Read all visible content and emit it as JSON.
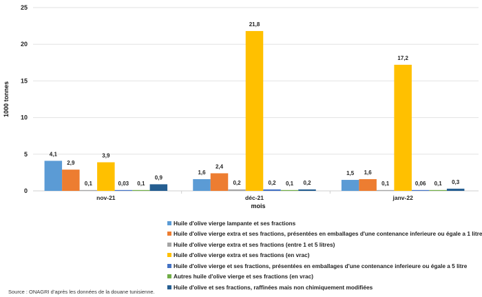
{
  "chart_data": {
    "type": "bar",
    "title": "",
    "xlabel": "mois",
    "ylabel": "1000 tonnes",
    "ylim": [
      0,
      25
    ],
    "yticks": [
      0,
      5,
      10,
      15,
      20,
      25
    ],
    "grid": true,
    "legend_position": "bottom",
    "categories": [
      "nov-21",
      "déc-21",
      "janv-22"
    ],
    "series": [
      {
        "name": "Huile d'olive vierge lampante et ses fractions",
        "color": "#5B9BD5",
        "values": [
          4.1,
          1.6,
          1.5
        ],
        "labels": [
          "4,1",
          "1,6",
          "1,5"
        ]
      },
      {
        "name": "Huile d'olive vierge extra et ses fractions, présentées en emballages d'une contenance inferieure ou égale a 1 litre",
        "color": "#ED7D31",
        "values": [
          2.9,
          2.4,
          1.6
        ],
        "labels": [
          "2,9",
          "2,4",
          "1,6"
        ]
      },
      {
        "name": "Huile d'olive vierge extra et ses fractions (entre 1 et 5 litres)",
        "color": "#A5A5A5",
        "values": [
          0.1,
          0.2,
          0.1
        ],
        "labels": [
          "0,1",
          "0,2",
          "0,1"
        ]
      },
      {
        "name": "Huile d'olive vierge extra et ses fractions (en vrac)",
        "color": "#FFC000",
        "values": [
          3.9,
          21.8,
          17.2
        ],
        "labels": [
          "3,9",
          "21,8",
          "17,2"
        ]
      },
      {
        "name": "Huile d'olive vierge et ses fractions, présentées en emballages d'une contenance inferieure ou égale a 5 litre",
        "color": "#4472C4",
        "values": [
          0.03,
          0.2,
          0.06
        ],
        "labels": [
          "0,03",
          "0,2",
          "0,06"
        ]
      },
      {
        "name": "Autres huile d'olive vierge et ses fractions (en vrac)",
        "color": "#70AD47",
        "values": [
          0.1,
          0.1,
          0.1
        ],
        "labels": [
          "0,1",
          "0,1",
          "0,1"
        ]
      },
      {
        "name": "Huile d'olive et ses fractions, raffinées mais non chimiquement modifiées",
        "color": "#255E91",
        "values": [
          0.9,
          0.2,
          0.3
        ],
        "labels": [
          "0,9",
          "0,2",
          "0,3"
        ]
      }
    ]
  },
  "source": "Source : ONAGRI d’après les données de la douane tunisienne."
}
